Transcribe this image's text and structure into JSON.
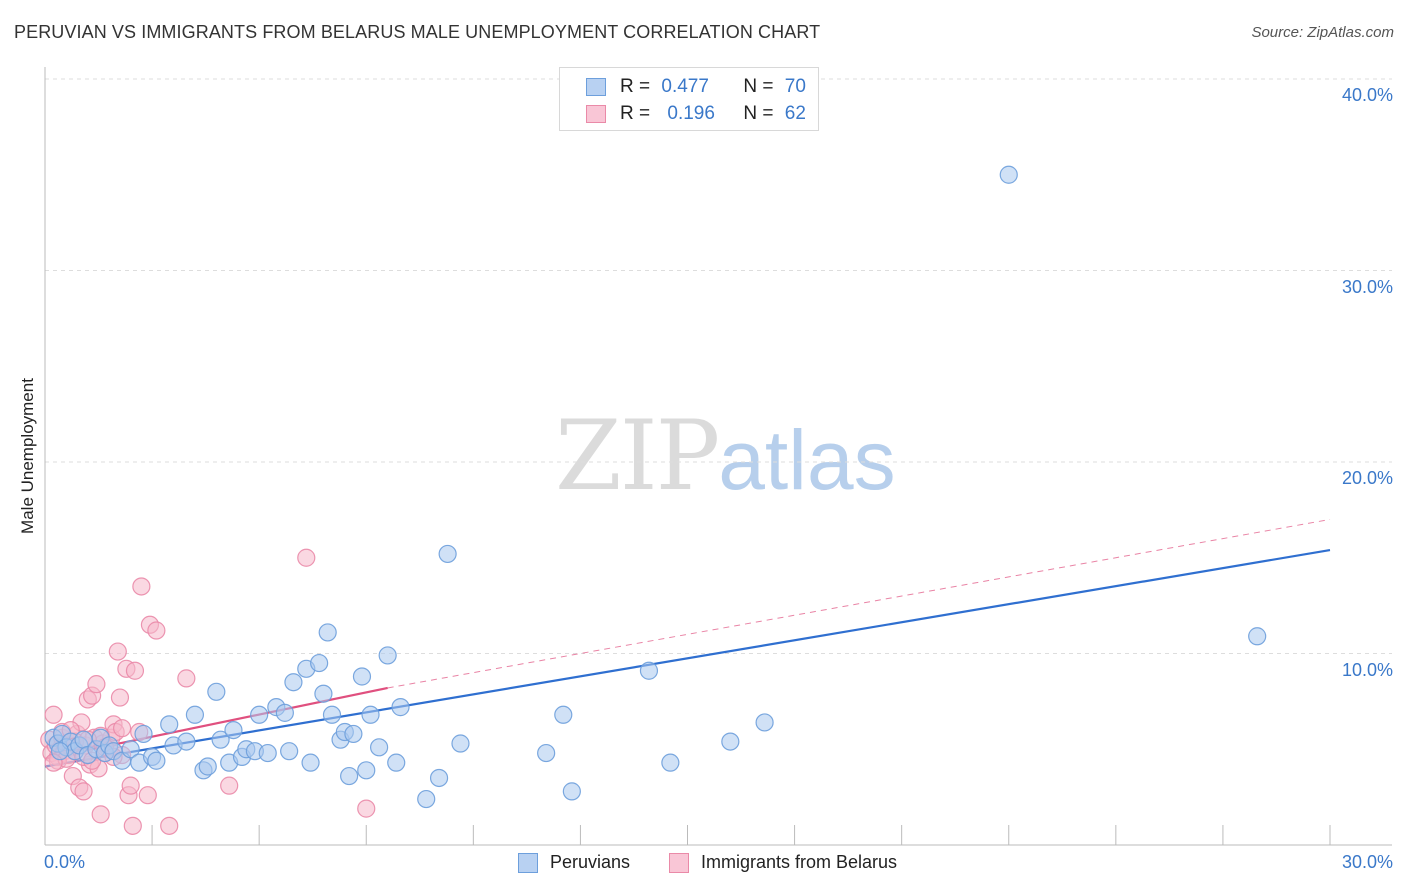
{
  "title": "PERUVIAN VS IMMIGRANTS FROM BELARUS MALE UNEMPLOYMENT CORRELATION CHART",
  "source": "Source: ZipAtlas.com",
  "watermark": {
    "part1": "ZIP",
    "part2": "atlas"
  },
  "legend_top": {
    "rows": [
      {
        "r_label": "R =",
        "r_value": "0.477",
        "n_label": "N =",
        "n_value": "70"
      },
      {
        "r_label": "R =",
        "r_value": "0.196",
        "n_label": "N =",
        "n_value": "62"
      }
    ]
  },
  "colors": {
    "blue_fill": "#a9c8ee",
    "blue_stroke": "#6d9fdc",
    "blue_line": "#2f6fd0",
    "pink_fill": "#f5b8cb",
    "pink_stroke": "#ea8aa8",
    "pink_line": "#e0507f",
    "axis_text": "#3a78c9",
    "grid": "#dddddd"
  },
  "chart_data": {
    "type": "scatter",
    "title": "PERUVIAN VS IMMIGRANTS FROM BELARUS MALE UNEMPLOYMENT CORRELATION CHART",
    "ylabel": "Male Unemployment",
    "xlabel": "",
    "xlim": [
      0,
      30
    ],
    "ylim": [
      0,
      41
    ],
    "x_tick_labels": [
      "0.0%",
      "30.0%"
    ],
    "y_tick_labels": [
      "10.0%",
      "20.0%",
      "30.0%",
      "40.0%"
    ],
    "y_ticks": [
      10,
      20,
      30,
      40
    ],
    "grid": true,
    "legend_position": "top-center",
    "series": [
      {
        "name": "Peruvians",
        "color": "#6d9fdc",
        "r": 0.477,
        "n": 70,
        "trend": {
          "x0": 0.0,
          "y0": 4.1,
          "x1": 30.0,
          "y1": 15.4,
          "style": "solid"
        },
        "points": [
          [
            0.2,
            5.6
          ],
          [
            0.3,
            5.3
          ],
          [
            0.4,
            5.8
          ],
          [
            0.5,
            5.1
          ],
          [
            0.6,
            5.4
          ],
          [
            0.7,
            4.9
          ],
          [
            0.8,
            5.2
          ],
          [
            0.9,
            5.5
          ],
          [
            1.0,
            4.7
          ],
          [
            1.2,
            5.0
          ],
          [
            1.3,
            5.6
          ],
          [
            1.4,
            4.8
          ],
          [
            1.5,
            5.2
          ],
          [
            1.6,
            4.9
          ],
          [
            1.8,
            4.4
          ],
          [
            2.0,
            5.0
          ],
          [
            2.2,
            4.3
          ],
          [
            2.3,
            5.8
          ],
          [
            2.5,
            4.6
          ],
          [
            2.6,
            4.4
          ],
          [
            2.9,
            6.3
          ],
          [
            3.0,
            5.2
          ],
          [
            3.3,
            5.4
          ],
          [
            3.5,
            6.8
          ],
          [
            3.7,
            3.9
          ],
          [
            3.8,
            4.1
          ],
          [
            4.0,
            8.0
          ],
          [
            4.1,
            5.5
          ],
          [
            4.3,
            4.3
          ],
          [
            4.4,
            6.0
          ],
          [
            4.6,
            4.6
          ],
          [
            4.7,
            5.0
          ],
          [
            4.9,
            4.9
          ],
          [
            5.0,
            6.8
          ],
          [
            5.2,
            4.8
          ],
          [
            5.4,
            7.2
          ],
          [
            5.6,
            6.9
          ],
          [
            5.7,
            4.9
          ],
          [
            5.8,
            8.5
          ],
          [
            6.1,
            9.2
          ],
          [
            6.2,
            4.3
          ],
          [
            6.4,
            9.5
          ],
          [
            6.5,
            7.9
          ],
          [
            6.6,
            11.1
          ],
          [
            6.7,
            6.8
          ],
          [
            6.9,
            5.5
          ],
          [
            7.0,
            5.9
          ],
          [
            7.1,
            3.6
          ],
          [
            7.2,
            5.8
          ],
          [
            7.4,
            8.8
          ],
          [
            7.5,
            3.9
          ],
          [
            7.6,
            6.8
          ],
          [
            7.8,
            5.1
          ],
          [
            8.0,
            9.9
          ],
          [
            8.2,
            4.3
          ],
          [
            8.3,
            7.2
          ],
          [
            8.9,
            2.4
          ],
          [
            9.2,
            3.5
          ],
          [
            9.7,
            5.3
          ],
          [
            9.4,
            15.2
          ],
          [
            11.7,
            4.8
          ],
          [
            12.1,
            6.8
          ],
          [
            12.3,
            2.8
          ],
          [
            14.1,
            9.1
          ],
          [
            14.6,
            4.3
          ],
          [
            16.0,
            5.4
          ],
          [
            16.8,
            6.4
          ],
          [
            22.5,
            35.0
          ],
          [
            28.3,
            10.9
          ],
          [
            0.35,
            4.9
          ]
        ]
      },
      {
        "name": "Immigrants from Belarus",
        "color": "#ea8aa8",
        "r": 0.196,
        "n": 62,
        "trend": {
          "x0": 0.0,
          "y0": 4.5,
          "x1": 8.0,
          "y1": 8.2,
          "style": "solid",
          "dashed_extension": {
            "x0": 8.0,
            "y0": 8.2,
            "x1": 30.0,
            "y1": 17.0
          }
        },
        "points": [
          [
            0.1,
            5.5
          ],
          [
            0.15,
            4.8
          ],
          [
            0.2,
            6.8
          ],
          [
            0.25,
            5.2
          ],
          [
            0.3,
            4.6
          ],
          [
            0.35,
            5.0
          ],
          [
            0.4,
            5.6
          ],
          [
            0.45,
            4.9
          ],
          [
            0.5,
            5.3
          ],
          [
            0.55,
            4.7
          ],
          [
            0.6,
            5.1
          ],
          [
            0.65,
            3.6
          ],
          [
            0.7,
            4.9
          ],
          [
            0.75,
            5.8
          ],
          [
            0.8,
            3.0
          ],
          [
            0.85,
            6.4
          ],
          [
            0.9,
            2.8
          ],
          [
            0.95,
            5.2
          ],
          [
            1.0,
            7.6
          ],
          [
            1.05,
            4.2
          ],
          [
            1.1,
            7.8
          ],
          [
            1.15,
            5.6
          ],
          [
            1.2,
            8.4
          ],
          [
            1.25,
            4.0
          ],
          [
            1.3,
            1.6
          ],
          [
            1.35,
            5.3
          ],
          [
            1.4,
            4.8
          ],
          [
            1.5,
            5.0
          ],
          [
            1.55,
            5.6
          ],
          [
            1.6,
            6.3
          ],
          [
            1.65,
            5.9
          ],
          [
            1.7,
            10.1
          ],
          [
            1.75,
            7.7
          ],
          [
            1.8,
            4.7
          ],
          [
            1.9,
            9.2
          ],
          [
            1.95,
            2.6
          ],
          [
            2.0,
            3.1
          ],
          [
            2.05,
            1.0
          ],
          [
            2.1,
            9.1
          ],
          [
            2.2,
            5.9
          ],
          [
            2.25,
            13.5
          ],
          [
            2.4,
            2.6
          ],
          [
            2.45,
            11.5
          ],
          [
            2.6,
            11.2
          ],
          [
            2.9,
            1.0
          ],
          [
            3.3,
            8.7
          ],
          [
            4.3,
            3.1
          ],
          [
            6.1,
            15.0
          ],
          [
            7.5,
            1.9
          ],
          [
            0.3,
            4.4
          ],
          [
            0.5,
            4.5
          ],
          [
            0.7,
            5.4
          ],
          [
            0.9,
            4.6
          ],
          [
            1.1,
            4.4
          ],
          [
            1.3,
            5.7
          ],
          [
            1.4,
            5.1
          ],
          [
            1.6,
            4.6
          ],
          [
            1.8,
            6.1
          ],
          [
            0.2,
            4.3
          ],
          [
            0.4,
            5.9
          ],
          [
            0.6,
            6.0
          ],
          [
            1.0,
            5.5
          ]
        ]
      }
    ]
  },
  "bottom_legend": [
    {
      "label": "Peruvians"
    },
    {
      "label": "Immigrants from Belarus"
    }
  ]
}
